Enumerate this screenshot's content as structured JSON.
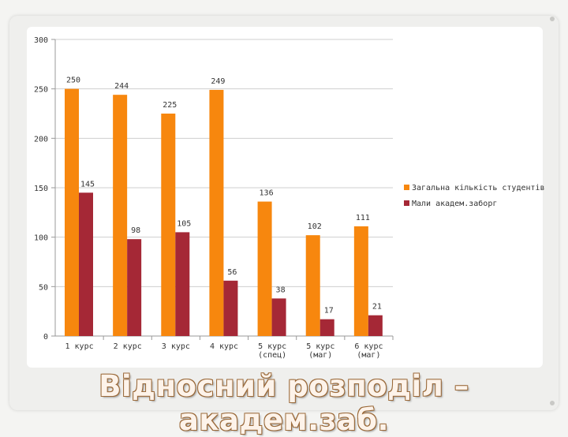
{
  "slide": {
    "title": "Відносний розподіл – академ.заб."
  },
  "colors": {
    "series_1": "#f7870e",
    "series_2": "#a52836",
    "axis": "#999999",
    "text": "#333333"
  },
  "chart_data": {
    "type": "bar",
    "title": "",
    "xlabel": "",
    "ylabel": "",
    "ylim": [
      0,
      300
    ],
    "yticks": [
      "0",
      "50",
      "100",
      "150",
      "200",
      "250",
      "300"
    ],
    "ytick_values": [
      0,
      50,
      100,
      150,
      200,
      250,
      300
    ],
    "grid": true,
    "legend_position": "right",
    "categories": [
      [
        "1 курс"
      ],
      [
        "2 курс"
      ],
      [
        "3 курс"
      ],
      [
        "4 курс"
      ],
      [
        "5 курс",
        "(спец)"
      ],
      [
        "5 курс",
        "(маг)"
      ],
      [
        "6 курс",
        "(маг)"
      ]
    ],
    "series": [
      {
        "name": "Загальна кількість студентів",
        "values": [
          250,
          244,
          225,
          249,
          136,
          102,
          111
        ]
      },
      {
        "name": "Мали академ.заборг",
        "values": [
          145,
          98,
          105,
          56,
          38,
          17,
          21
        ]
      }
    ]
  }
}
